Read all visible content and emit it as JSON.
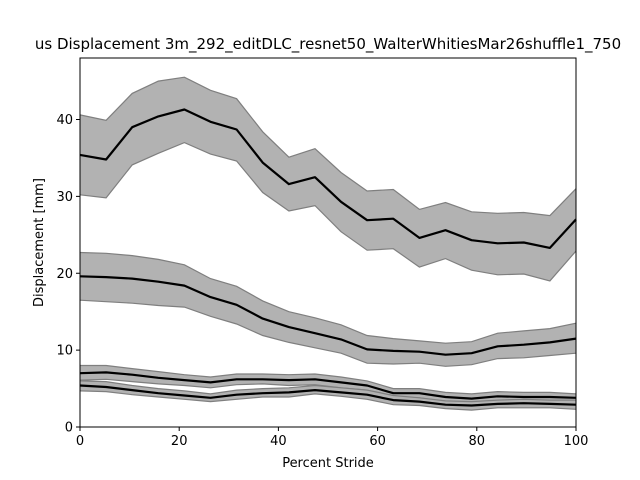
{
  "chart_data": {
    "type": "line",
    "title": "us Displacement 3m_292_editDLC_resnet50_WalterWhitiesMar26shuffle1_750",
    "xlabel": "Percent Stride",
    "ylabel": "Displacement [mm]",
    "xlim": [
      0,
      100
    ],
    "ylim": [
      0,
      48
    ],
    "xticks": [
      0,
      20,
      40,
      60,
      80,
      100
    ],
    "yticks": [
      0,
      10,
      20,
      30,
      40
    ],
    "grid": false,
    "colors": {
      "mean_line": "#000000",
      "band_fill": "#b2b2b2",
      "band_edge": "#7f7f7f"
    },
    "x": [
      0,
      5.26,
      10.53,
      15.79,
      21.05,
      26.32,
      31.58,
      36.84,
      42.11,
      47.37,
      52.63,
      57.89,
      63.16,
      68.42,
      73.68,
      78.95,
      84.21,
      89.47,
      94.74,
      100
    ],
    "series": [
      {
        "mean": [
          35.4,
          34.8,
          39.0,
          40.4,
          41.3,
          39.7,
          38.7,
          34.4,
          31.6,
          32.5,
          29.3,
          26.9,
          27.1,
          24.6,
          25.6,
          24.3,
          23.9,
          24.0,
          23.3,
          27.0
        ],
        "upper": [
          40.6,
          39.9,
          43.4,
          45.0,
          45.5,
          43.8,
          42.7,
          38.4,
          35.1,
          36.2,
          33.1,
          30.7,
          30.9,
          28.3,
          29.2,
          28.0,
          27.8,
          27.9,
          27.5,
          31.0
        ],
        "lower": [
          30.2,
          29.8,
          34.1,
          35.6,
          37.0,
          35.5,
          34.6,
          30.5,
          28.1,
          28.8,
          25.4,
          23.0,
          23.2,
          20.8,
          21.9,
          20.4,
          19.8,
          19.9,
          19.0,
          22.9
        ]
      },
      {
        "mean": [
          19.6,
          19.5,
          19.3,
          18.9,
          18.4,
          16.9,
          15.9,
          14.1,
          13.0,
          12.2,
          11.4,
          10.1,
          9.9,
          9.8,
          9.4,
          9.6,
          10.5,
          10.7,
          11.0,
          11.5
        ],
        "upper": [
          22.7,
          22.6,
          22.3,
          21.8,
          21.1,
          19.3,
          18.3,
          16.4,
          15.0,
          14.2,
          13.3,
          11.9,
          11.5,
          11.2,
          10.9,
          11.1,
          12.2,
          12.5,
          12.8,
          13.5
        ],
        "lower": [
          16.5,
          16.3,
          16.1,
          15.8,
          15.6,
          14.4,
          13.4,
          11.9,
          11.0,
          10.3,
          9.6,
          8.3,
          8.2,
          8.3,
          7.9,
          8.1,
          8.9,
          9.0,
          9.3,
          9.6
        ]
      },
      {
        "mean": [
          7.0,
          7.1,
          6.8,
          6.4,
          6.1,
          5.8,
          6.2,
          6.2,
          6.1,
          6.2,
          5.8,
          5.4,
          4.4,
          4.4,
          3.9,
          3.7,
          4.0,
          3.9,
          3.9,
          3.8
        ],
        "upper": [
          8.0,
          8.0,
          7.6,
          7.2,
          6.8,
          6.5,
          6.9,
          6.9,
          6.8,
          6.9,
          6.5,
          6.0,
          5.0,
          5.0,
          4.5,
          4.3,
          4.6,
          4.5,
          4.5,
          4.3
        ],
        "lower": [
          6.1,
          6.2,
          5.9,
          5.6,
          5.4,
          5.1,
          5.5,
          5.6,
          5.4,
          5.5,
          5.1,
          4.8,
          3.8,
          3.8,
          3.3,
          3.1,
          3.4,
          3.3,
          3.3,
          3.2
        ]
      },
      {
        "mean": [
          5.4,
          5.2,
          4.8,
          4.4,
          4.1,
          3.8,
          4.2,
          4.4,
          4.5,
          4.8,
          4.5,
          4.2,
          3.5,
          3.3,
          2.9,
          2.8,
          3.0,
          3.1,
          3.0,
          2.9
        ],
        "upper": [
          6.0,
          5.9,
          5.4,
          5.0,
          4.7,
          4.3,
          4.8,
          5.0,
          5.1,
          5.4,
          5.1,
          4.8,
          4.1,
          3.8,
          3.4,
          3.3,
          3.5,
          3.6,
          3.5,
          3.5
        ],
        "lower": [
          4.7,
          4.6,
          4.2,
          3.9,
          3.6,
          3.3,
          3.6,
          3.9,
          3.9,
          4.3,
          4.0,
          3.6,
          2.9,
          2.8,
          2.4,
          2.2,
          2.5,
          2.5,
          2.5,
          2.3
        ]
      }
    ]
  }
}
